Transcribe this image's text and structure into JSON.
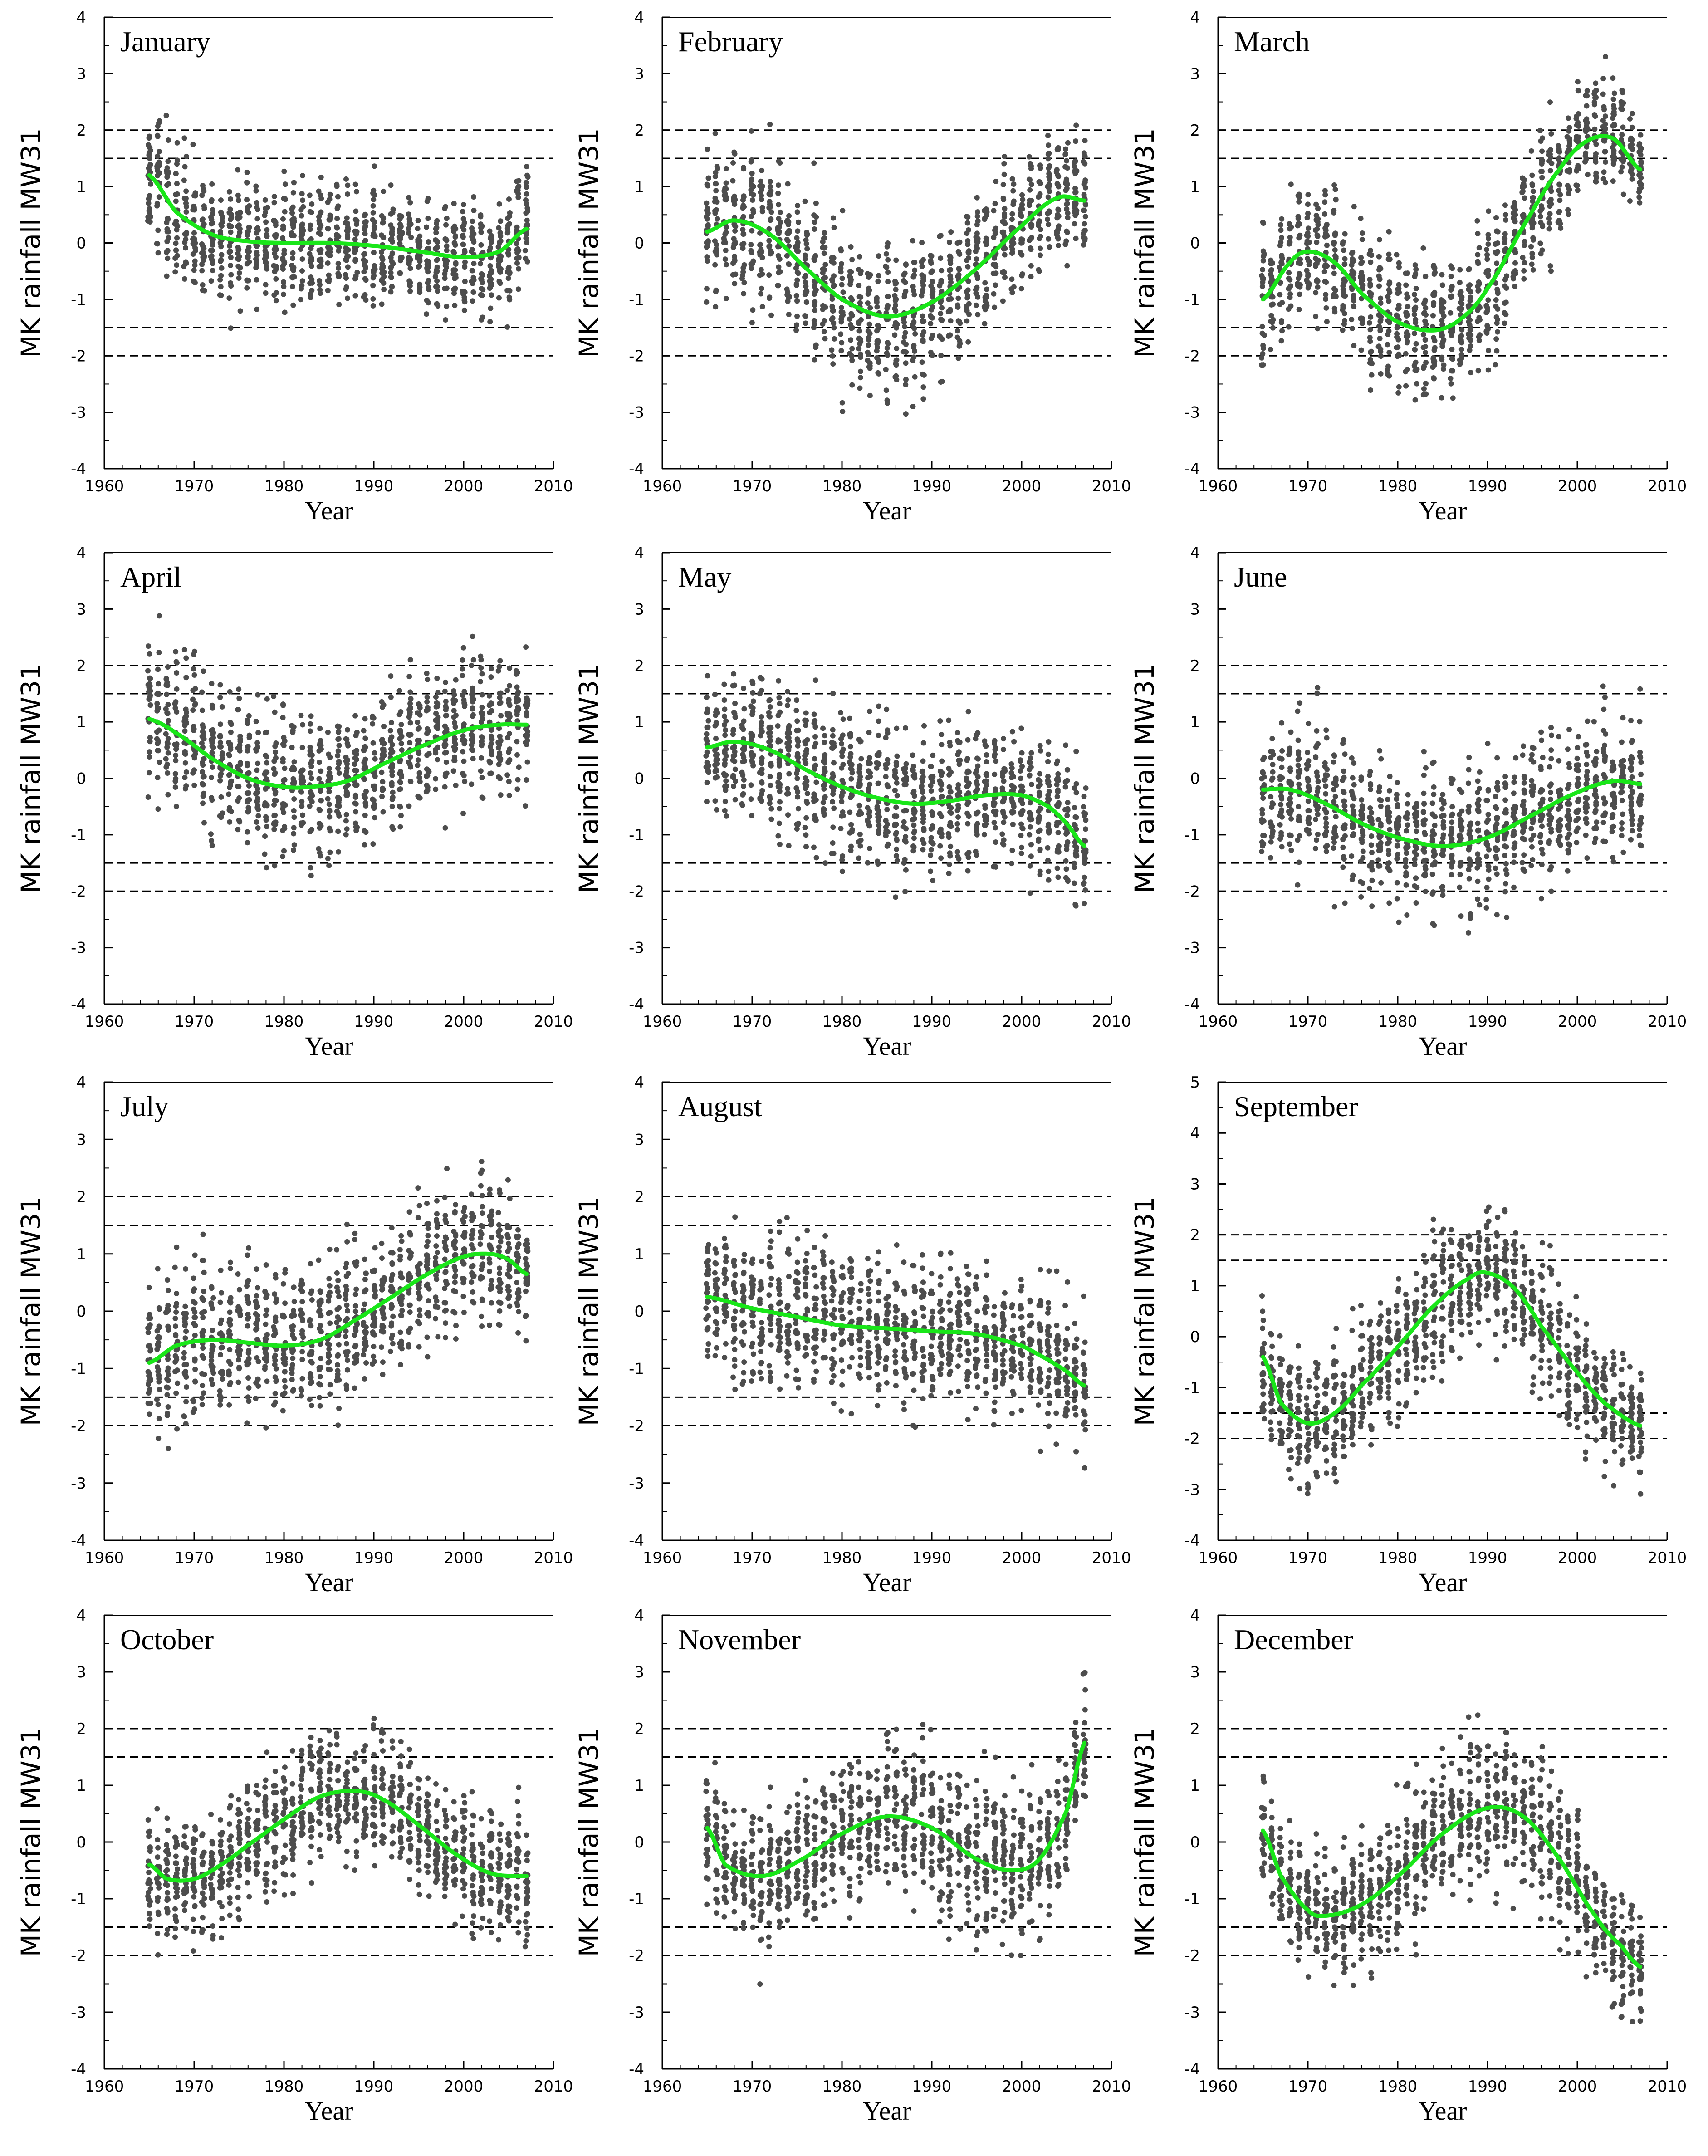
{
  "colors": {
    "points": "#4d4d4d",
    "trend": "#19e619",
    "axes": "#000000",
    "thresholds": "#000000"
  },
  "chart_data": [
    {
      "type": "scatter",
      "title": "January",
      "xlabel": "Year",
      "ylabel": "MK rainfall MW31",
      "xlim": [
        1960,
        2010
      ],
      "ylim": [
        -4,
        4
      ],
      "xticks": [
        1960,
        1970,
        1980,
        1990,
        2000,
        2010
      ],
      "yticks": [
        -4,
        -3,
        -2,
        -1,
        0,
        1,
        2,
        3,
        4
      ],
      "thresholds": [
        2,
        1.5,
        -1.5,
        -2
      ],
      "x_range": [
        1965,
        2007
      ],
      "trend": {
        "x": [
          1965,
          1968,
          1972,
          1976,
          1980,
          1985,
          1990,
          1995,
          2000,
          2004,
          2007
        ],
        "y": [
          1.2,
          0.55,
          0.15,
          0.03,
          0.0,
          0.0,
          -0.05,
          -0.15,
          -0.25,
          -0.15,
          0.25
        ]
      },
      "spread": {
        "x": [
          1965,
          1975,
          1985,
          1995,
          2005
        ],
        "y": [
          1.0,
          0.85,
          0.85,
          0.75,
          0.8
        ]
      }
    },
    {
      "type": "scatter",
      "title": "February",
      "xlabel": "Year",
      "ylabel": "MK rainfall MW31",
      "xlim": [
        1960,
        2010
      ],
      "ylim": [
        -4,
        4
      ],
      "xticks": [
        1960,
        1970,
        1980,
        1990,
        2000,
        2010
      ],
      "yticks": [
        -4,
        -3,
        -2,
        -1,
        0,
        1,
        2,
        3,
        4
      ],
      "thresholds": [
        2,
        1.5,
        -1.5,
        -2
      ],
      "x_range": [
        1965,
        2007
      ],
      "trend": {
        "x": [
          1965,
          1968,
          1972,
          1976,
          1980,
          1985,
          1990,
          1995,
          2000,
          2004,
          2007
        ],
        "y": [
          0.2,
          0.4,
          0.15,
          -0.45,
          -1.0,
          -1.3,
          -1.05,
          -0.45,
          0.3,
          0.8,
          0.75
        ]
      },
      "spread": {
        "x": [
          1965,
          1975,
          1985,
          1995,
          2005
        ],
        "y": [
          1.0,
          1.1,
          1.1,
          0.9,
          0.85
        ]
      }
    },
    {
      "type": "scatter",
      "title": "March",
      "xlabel": "Year",
      "ylabel": "MK rainfall MW31",
      "xlim": [
        1960,
        2010
      ],
      "ylim": [
        -4,
        4
      ],
      "xticks": [
        1960,
        1970,
        1980,
        1990,
        2000,
        2010
      ],
      "yticks": [
        -4,
        -3,
        -2,
        -1,
        0,
        1,
        2,
        3,
        4
      ],
      "thresholds": [
        2,
        1.5,
        -1.5,
        -2
      ],
      "x_range": [
        1965,
        2007
      ],
      "trend": {
        "x": [
          1965,
          1968,
          1970,
          1973,
          1976,
          1980,
          1984,
          1987,
          1990,
          1994,
          1998,
          2001,
          2004,
          2007
        ],
        "y": [
          -1.0,
          -0.35,
          -0.15,
          -0.35,
          -0.9,
          -1.4,
          -1.55,
          -1.35,
          -0.8,
          0.3,
          1.3,
          1.8,
          1.85,
          1.3
        ]
      },
      "spread": {
        "x": [
          1965,
          1975,
          1985,
          1995,
          2005
        ],
        "y": [
          0.9,
          1.0,
          1.0,
          0.85,
          0.75
        ]
      }
    },
    {
      "type": "scatter",
      "title": "April",
      "xlabel": "Year",
      "ylabel": "MK rainfall MW31",
      "xlim": [
        1960,
        2010
      ],
      "ylim": [
        -4,
        4
      ],
      "xticks": [
        1960,
        1970,
        1980,
        1990,
        2000,
        2010
      ],
      "yticks": [
        -4,
        -3,
        -2,
        -1,
        0,
        1,
        2,
        3,
        4
      ],
      "thresholds": [
        2,
        1.5,
        -1.5,
        -2
      ],
      "x_range": [
        1965,
        2007
      ],
      "trend": {
        "x": [
          1965,
          1968,
          1972,
          1976,
          1980,
          1983,
          1987,
          1991,
          1995,
          2000,
          2004,
          2007
        ],
        "y": [
          1.05,
          0.8,
          0.35,
          0.0,
          -0.15,
          -0.15,
          -0.05,
          0.25,
          0.55,
          0.85,
          0.95,
          0.95
        ]
      },
      "spread": {
        "x": [
          1965,
          1975,
          1985,
          1995,
          2005
        ],
        "y": [
          1.1,
          1.05,
          0.95,
          0.95,
          0.9
        ]
      }
    },
    {
      "type": "scatter",
      "title": "May",
      "xlabel": "Year",
      "ylabel": "MK rainfall MW31",
      "xlim": [
        1960,
        2010
      ],
      "ylim": [
        -4,
        4
      ],
      "xticks": [
        1960,
        1970,
        1980,
        1990,
        2000,
        2010
      ],
      "yticks": [
        -4,
        -3,
        -2,
        -1,
        0,
        1,
        2,
        3,
        4
      ],
      "thresholds": [
        2,
        1.5,
        -1.5,
        -2
      ],
      "x_range": [
        1965,
        2007
      ],
      "trend": {
        "x": [
          1965,
          1968,
          1972,
          1976,
          1980,
          1984,
          1988,
          1992,
          1996,
          2000,
          2003,
          2005,
          2007
        ],
        "y": [
          0.55,
          0.65,
          0.5,
          0.15,
          -0.15,
          -0.35,
          -0.45,
          -0.4,
          -0.3,
          -0.3,
          -0.5,
          -0.8,
          -1.2
        ]
      },
      "spread": {
        "x": [
          1965,
          1975,
          1985,
          1995,
          2005
        ],
        "y": [
          0.95,
          1.0,
          1.0,
          0.95,
          0.95
        ]
      }
    },
    {
      "type": "scatter",
      "title": "June",
      "xlabel": "Year",
      "ylabel": "MK rainfall MW31",
      "xlim": [
        1960,
        2010
      ],
      "ylim": [
        -4,
        4
      ],
      "xticks": [
        1960,
        1970,
        1980,
        1990,
        2000,
        2010
      ],
      "yticks": [
        -4,
        -3,
        -2,
        -1,
        0,
        1,
        2,
        3,
        4
      ],
      "thresholds": [
        2,
        1.5,
        -1.5,
        -2
      ],
      "x_range": [
        1965,
        2007
      ],
      "trend": {
        "x": [
          1965,
          1968,
          1972,
          1976,
          1980,
          1985,
          1990,
          1995,
          2000,
          2004,
          2007
        ],
        "y": [
          -0.2,
          -0.2,
          -0.45,
          -0.8,
          -1.05,
          -1.2,
          -1.05,
          -0.65,
          -0.25,
          -0.05,
          -0.1
        ]
      },
      "spread": {
        "x": [
          1965,
          1975,
          1985,
          1995,
          2005
        ],
        "y": [
          1.0,
          1.0,
          1.0,
          1.0,
          0.95
        ]
      }
    },
    {
      "type": "scatter",
      "title": "July",
      "xlabel": "Year",
      "ylabel": "MK rainfall MW31",
      "xlim": [
        1960,
        2010
      ],
      "ylim": [
        -4,
        4
      ],
      "xticks": [
        1960,
        1970,
        1980,
        1990,
        2000,
        2010
      ],
      "yticks": [
        -4,
        -3,
        -2,
        -1,
        0,
        1,
        2,
        3,
        4
      ],
      "thresholds": [
        2,
        1.5,
        -1.5,
        -2
      ],
      "x_range": [
        1965,
        2007
      ],
      "trend": {
        "x": [
          1965,
          1968,
          1972,
          1976,
          1980,
          1984,
          1988,
          1992,
          1996,
          2000,
          2003,
          2005,
          2007
        ],
        "y": [
          -0.9,
          -0.6,
          -0.5,
          -0.55,
          -0.6,
          -0.5,
          -0.15,
          0.25,
          0.65,
          0.95,
          1.0,
          0.9,
          0.65
        ]
      },
      "spread": {
        "x": [
          1965,
          1975,
          1985,
          1995,
          2005
        ],
        "y": [
          1.1,
          1.1,
          1.0,
          1.0,
          0.95
        ]
      }
    },
    {
      "type": "scatter",
      "title": "August",
      "xlabel": "Year",
      "ylabel": "MK rainfall MW31",
      "xlim": [
        1960,
        2010
      ],
      "ylim": [
        -4,
        4
      ],
      "xticks": [
        1960,
        1970,
        1980,
        1990,
        2000,
        2010
      ],
      "yticks": [
        -4,
        -3,
        -2,
        -1,
        0,
        1,
        2,
        3,
        4
      ],
      "thresholds": [
        2,
        1.5,
        -1.5,
        -2
      ],
      "x_range": [
        1965,
        2007
      ],
      "trend": {
        "x": [
          1965,
          1970,
          1975,
          1980,
          1985,
          1990,
          1995,
          2000,
          2003,
          2005,
          2007
        ],
        "y": [
          0.25,
          0.05,
          -0.1,
          -0.25,
          -0.3,
          -0.35,
          -0.4,
          -0.6,
          -0.85,
          -1.05,
          -1.3
        ]
      },
      "spread": {
        "x": [
          1965,
          1975,
          1985,
          1995,
          2005
        ],
        "y": [
          1.0,
          1.0,
          1.0,
          1.0,
          0.95
        ]
      }
    },
    {
      "type": "scatter",
      "title": "September",
      "xlabel": "Year",
      "ylabel": "MK rainfall MW31",
      "xlim": [
        1960,
        2010
      ],
      "ylim": [
        -4,
        5
      ],
      "xticks": [
        1960,
        1970,
        1980,
        1990,
        2000,
        2010
      ],
      "yticks": [
        -4,
        -3,
        -2,
        -1,
        0,
        1,
        2,
        3,
        4,
        5
      ],
      "thresholds": [
        2,
        1.5,
        -1.5,
        -2
      ],
      "x_range": [
        1965,
        2007
      ],
      "trend": {
        "x": [
          1965,
          1967,
          1970,
          1973,
          1976,
          1980,
          1984,
          1988,
          1990,
          1993,
          1996,
          2000,
          2003,
          2007
        ],
        "y": [
          -0.4,
          -1.3,
          -1.7,
          -1.5,
          -0.95,
          -0.2,
          0.6,
          1.15,
          1.25,
          0.95,
          0.2,
          -0.7,
          -1.3,
          -1.75
        ]
      },
      "spread": {
        "x": [
          1965,
          1975,
          1985,
          1995,
          2005
        ],
        "y": [
          0.95,
          1.0,
          1.05,
          1.0,
          0.9
        ]
      }
    },
    {
      "type": "scatter",
      "title": "October",
      "xlabel": "Year",
      "ylabel": "MK rainfall MW31",
      "xlim": [
        1960,
        2010
      ],
      "ylim": [
        -4,
        4
      ],
      "xticks": [
        1960,
        1970,
        1980,
        1990,
        2000,
        2010
      ],
      "yticks": [
        -4,
        -3,
        -2,
        -1,
        0,
        1,
        2,
        3,
        4
      ],
      "thresholds": [
        2,
        1.5,
        -1.5,
        -2
      ],
      "x_range": [
        1965,
        2007
      ],
      "trend": {
        "x": [
          1965,
          1967,
          1970,
          1973,
          1976,
          1980,
          1984,
          1988,
          1991,
          1995,
          1999,
          2003,
          2007
        ],
        "y": [
          -0.4,
          -0.65,
          -0.65,
          -0.4,
          -0.05,
          0.4,
          0.8,
          0.9,
          0.75,
          0.3,
          -0.2,
          -0.55,
          -0.6
        ]
      },
      "spread": {
        "x": [
          1965,
          1975,
          1985,
          1995,
          2005
        ],
        "y": [
          0.9,
          0.9,
          0.85,
          0.9,
          0.85
        ]
      }
    },
    {
      "type": "scatter",
      "title": "November",
      "xlabel": "Year",
      "ylabel": "MK rainfall MW31",
      "xlim": [
        1960,
        2010
      ],
      "ylim": [
        -4,
        4
      ],
      "xticks": [
        1960,
        1970,
        1980,
        1990,
        2000,
        2010
      ],
      "yticks": [
        -4,
        -3,
        -2,
        -1,
        0,
        1,
        2,
        3,
        4
      ],
      "thresholds": [
        2,
        1.5,
        -1.5,
        -2
      ],
      "x_range": [
        1965,
        2007
      ],
      "trend": {
        "x": [
          1965,
          1967,
          1971,
          1975,
          1980,
          1985,
          1990,
          1995,
          1999,
          2002,
          2005,
          2007
        ],
        "y": [
          0.25,
          -0.4,
          -0.6,
          -0.35,
          0.15,
          0.45,
          0.25,
          -0.3,
          -0.5,
          -0.3,
          0.55,
          1.75
        ]
      },
      "spread": {
        "x": [
          1965,
          1975,
          1985,
          1995,
          2005
        ],
        "y": [
          0.9,
          1.0,
          1.0,
          1.05,
          1.0
        ]
      }
    },
    {
      "type": "scatter",
      "title": "December",
      "xlabel": "Year",
      "ylabel": "MK rainfall MW31",
      "xlim": [
        1960,
        2010
      ],
      "ylim": [
        -4,
        4
      ],
      "xticks": [
        1960,
        1970,
        1980,
        1990,
        2000,
        2010
      ],
      "yticks": [
        -4,
        -3,
        -2,
        -1,
        0,
        1,
        2,
        3,
        4
      ],
      "thresholds": [
        2,
        1.5,
        -1.5,
        -2
      ],
      "x_range": [
        1965,
        2007
      ],
      "trend": {
        "x": [
          1965,
          1967,
          1970,
          1972,
          1976,
          1980,
          1985,
          1990,
          1994,
          1998,
          2002,
          2005,
          2007
        ],
        "y": [
          0.2,
          -0.6,
          -1.2,
          -1.3,
          -1.1,
          -0.6,
          0.15,
          0.6,
          0.45,
          -0.3,
          -1.3,
          -1.85,
          -2.2
        ]
      },
      "spread": {
        "x": [
          1965,
          1975,
          1985,
          1995,
          2005
        ],
        "y": [
          0.85,
          0.9,
          1.0,
          1.0,
          0.8
        ]
      }
    }
  ]
}
